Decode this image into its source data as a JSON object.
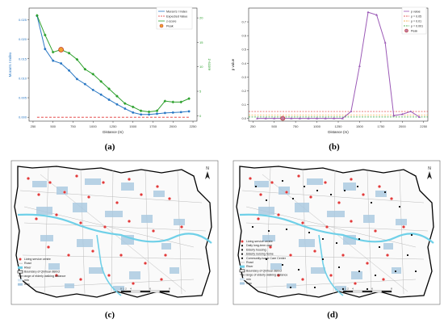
{
  "captions": {
    "a": "(a)",
    "b": "(b)",
    "c": "(c)",
    "d": "(d)"
  },
  "colors": {
    "moran_line": "#2a78c4",
    "zscore_line": "#2ca02c",
    "expected_line": "#e03030",
    "peak_edge": "#c0392b",
    "pvalue_line": "#9b59b6",
    "p005": "#e03030",
    "p001": "#f0a030",
    "p0001": "#2ca02c",
    "road": "#bbbbbb",
    "river": "#6fd0e8",
    "walk_zone": "#a8c8e0",
    "boundary": "#000000",
    "centre_dot": "#e23a3a",
    "daycare_dot": "#1a1a1a"
  },
  "chart_data": [
    {
      "type": "line",
      "xlabel": "Distance (m)",
      "ylabel": "Moran's I Index",
      "y2label": "z-score",
      "xlim": [
        200,
        2300
      ],
      "x": [
        300,
        400,
        500,
        600,
        700,
        800,
        900,
        1000,
        1100,
        1200,
        1300,
        1400,
        1500,
        1600,
        1700,
        1800,
        1900,
        2000,
        2100,
        2200
      ],
      "xticks": [
        "250",
        "500",
        "750",
        "1000",
        "1250",
        "1500",
        "1750",
        "2000",
        "2250"
      ],
      "yticks_left": [
        "0.000",
        "0.005",
        "0.010",
        "0.015",
        "0.020",
        "0.025"
      ],
      "yticks_right": [
        "0",
        "5",
        "10",
        "15",
        "20"
      ],
      "series": [
        {
          "name": "Moran's I Index",
          "axis": "left",
          "values": [
            0.026,
            0.0175,
            0.0145,
            0.0138,
            0.012,
            0.0098,
            0.0085,
            0.007,
            0.0058,
            0.0045,
            0.0033,
            0.0022,
            0.0012,
            0.0007,
            0.0007,
            0.0009,
            0.0011,
            0.0012,
            0.0013,
            0.0015
          ]
        },
        {
          "name": "Expected Value",
          "axis": "left",
          "values": [
            0.0,
            0.0,
            0.0,
            0.0,
            0.0,
            0.0,
            0.0,
            0.0,
            0.0,
            0.0,
            0.0,
            0.0,
            0.0,
            0.0,
            0.0,
            0.0,
            0.0,
            0.0,
            0.0,
            0.0
          ]
        },
        {
          "name": "z-score",
          "axis": "right",
          "values": [
            20.5,
            16.5,
            13.0,
            13.5,
            12.8,
            11.5,
            9.5,
            8.5,
            7.0,
            5.5,
            4.0,
            2.5,
            1.8,
            1.0,
            0.8,
            1.0,
            3.0,
            2.8,
            2.8,
            3.5
          ]
        }
      ],
      "legend": [
        "Moran's I Index",
        "Expected Value",
        "z-score",
        "Peak"
      ],
      "legend_loc": "top-right",
      "peak": {
        "label": "Peak",
        "x": 600,
        "series": "z-score"
      },
      "grid": false
    },
    {
      "type": "line",
      "xlabel": "Distance (m)",
      "ylabel": "p value",
      "xlim": [
        200,
        2300
      ],
      "ylim": [
        -0.02,
        0.8
      ],
      "x": [
        300,
        400,
        500,
        600,
        700,
        800,
        900,
        1000,
        1100,
        1200,
        1300,
        1400,
        1500,
        1600,
        1700,
        1800,
        1900,
        2000,
        2100,
        2200
      ],
      "xticks": [
        "250",
        "500",
        "750",
        "1000",
        "1250",
        "1500",
        "1750",
        "2000",
        "2250"
      ],
      "yticks": [
        "0.0",
        "0.1",
        "0.2",
        "0.3",
        "0.4",
        "0.5",
        "0.6",
        "0.7"
      ],
      "series": [
        {
          "name": "p value",
          "values": [
            0.0,
            0.0,
            0.0,
            0.0,
            0.0,
            0.0,
            0.0,
            0.0,
            0.0,
            0.0,
            0.0,
            0.05,
            0.38,
            0.77,
            0.75,
            0.55,
            0.02,
            0.03,
            0.05,
            0.01
          ]
        }
      ],
      "thresholds": [
        {
          "name": "p = 0.05",
          "value": 0.05
        },
        {
          "name": "p = 0.01",
          "value": 0.01
        },
        {
          "name": "p = 0.001",
          "value": 0.001
        }
      ],
      "legend": [
        "p value",
        "p = 0.05",
        "p = 0.01",
        "p = 0.001",
        "Peak"
      ],
      "legend_loc": "top-right",
      "peak": {
        "label": "Peak",
        "x": 600,
        "series": "p value"
      },
      "grid": false
    }
  ],
  "map_c": {
    "legend_items": [
      "Living service centre",
      "Road",
      "River",
      "Boundary of Qinhuai district",
      "The range of elderly walking distance",
      "min",
      "max"
    ],
    "north_label": "N",
    "scale_labels": [
      "0",
      "1",
      "2",
      "4",
      "6",
      "8"
    ]
  },
  "map_d": {
    "legend_items": [
      "Living service centre",
      "Daily long-term care",
      "Elderly housing",
      "Elderly nursing home",
      "Community-home Care Center",
      "Road",
      "River",
      "Boundary of Qinhuai district",
      "The range of elderly walking distance",
      "min",
      "max"
    ],
    "north_label": "N",
    "scale_labels": [
      "0",
      "1",
      "2",
      "4",
      "6",
      "8"
    ]
  }
}
